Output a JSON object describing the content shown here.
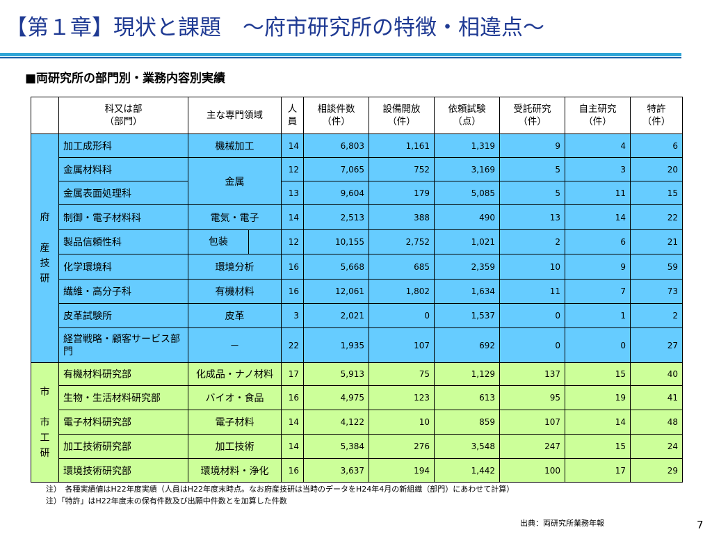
{
  "slide": {
    "title": "【第１章】現状と課題　～府市研究所の特徴・相違点～",
    "heading": "■両研究所の部門別・業務内容別実績",
    "page_number": "7",
    "source": "出典：両研究所業務年報",
    "notes": [
      "注）　各種実績値はH22年度実績（人員はH22年度末時点。なお府産技研は当時のデータをH24年4月の新組織（部門）にあわせて計算）",
      "注）「特許」はH22年度末の保有件数及び出願中件数とを加算した件数"
    ],
    "colors": {
      "fu_row": "#66ccff",
      "shi_row": "#ccff99",
      "title": "#1f3a93",
      "rule": "#2fa5d6"
    }
  },
  "table": {
    "headers": {
      "dept_line1": "科又は部",
      "dept_line2": "（部門）",
      "field": "主な専門領域",
      "staff_line1": "人",
      "staff_line2": "員",
      "consult_line1": "相談件数",
      "consult_line2": "（件）",
      "equip_line1": "設備開放",
      "equip_line2": "（件）",
      "test_line1": "依頼試験",
      "test_line2": "（点）",
      "contract_line1": "受託研究",
      "contract_line2": "（件）",
      "own_line1": "自主研究",
      "own_line2": "（件）",
      "patent_line1": "特許",
      "patent_line2": "（件）"
    },
    "fu": {
      "label_chars": [
        "府",
        "",
        "産",
        "技",
        "研"
      ],
      "rows": [
        {
          "dept": "加工成形科",
          "field": "機械加工",
          "staff": "14",
          "consult": "6,803",
          "equip": "1,161",
          "test": "1,319",
          "contract": "9",
          "own": "4",
          "patent": "6"
        },
        {
          "dept": "金属材料科",
          "field": "金属",
          "staff": "12",
          "consult": "7,065",
          "equip": "752",
          "test": "3,169",
          "contract": "5",
          "own": "3",
          "patent": "20"
        },
        {
          "dept": "金属表面処理科",
          "field": "",
          "staff": "13",
          "consult": "9,604",
          "equip": "179",
          "test": "5,085",
          "contract": "5",
          "own": "11",
          "patent": "15"
        },
        {
          "dept": "制御・電子材料科",
          "field": "電気・電子",
          "staff": "14",
          "consult": "2,513",
          "equip": "388",
          "test": "490",
          "contract": "13",
          "own": "14",
          "patent": "22"
        },
        {
          "dept": "製品信頼性科",
          "field": "包装",
          "staff": "12",
          "consult": "10,155",
          "equip": "2,752",
          "test": "1,021",
          "contract": "2",
          "own": "6",
          "patent": "21"
        },
        {
          "dept": "化学環境科",
          "field": "環境分析",
          "staff": "16",
          "consult": "5,668",
          "equip": "685",
          "test": "2,359",
          "contract": "10",
          "own": "9",
          "patent": "59"
        },
        {
          "dept": "繊維・高分子科",
          "field": "有機材料",
          "staff": "16",
          "consult": "12,061",
          "equip": "1,802",
          "test": "1,634",
          "contract": "11",
          "own": "7",
          "patent": "73"
        },
        {
          "dept": "皮革試験所",
          "field": "皮革",
          "staff": "3",
          "consult": "2,021",
          "equip": "0",
          "test": "1,537",
          "contract": "0",
          "own": "1",
          "patent": "2"
        },
        {
          "dept": "経営戦略・顧客サービス部門",
          "field": "－",
          "staff": "22",
          "consult": "1,935",
          "equip": "107",
          "test": "692",
          "contract": "0",
          "own": "0",
          "patent": "27"
        }
      ]
    },
    "shi": {
      "label_chars": [
        "市",
        "",
        "市",
        "工",
        "研"
      ],
      "rows": [
        {
          "dept": "有機材料研究部",
          "field": "化成品・ナノ材料",
          "staff": "17",
          "consult": "5,913",
          "equip": "75",
          "test": "1,129",
          "contract": "137",
          "own": "15",
          "patent": "40"
        },
        {
          "dept": "生物・生活材料研究部",
          "field": "バイオ・食品",
          "staff": "16",
          "consult": "4,975",
          "equip": "123",
          "test": "613",
          "contract": "95",
          "own": "19",
          "patent": "41"
        },
        {
          "dept": "電子材料研究部",
          "field": "電子材料",
          "staff": "14",
          "consult": "4,122",
          "equip": "10",
          "test": "859",
          "contract": "107",
          "own": "14",
          "patent": "48"
        },
        {
          "dept": "加工技術研究部",
          "field": "加工技術",
          "staff": "14",
          "consult": "5,384",
          "equip": "276",
          "test": "3,548",
          "contract": "247",
          "own": "15",
          "patent": "24"
        },
        {
          "dept": "環境技術研究部",
          "field": "環境材料・浄化",
          "staff": "16",
          "consult": "3,637",
          "equip": "194",
          "test": "1,442",
          "contract": "100",
          "own": "17",
          "patent": "29"
        }
      ]
    }
  }
}
